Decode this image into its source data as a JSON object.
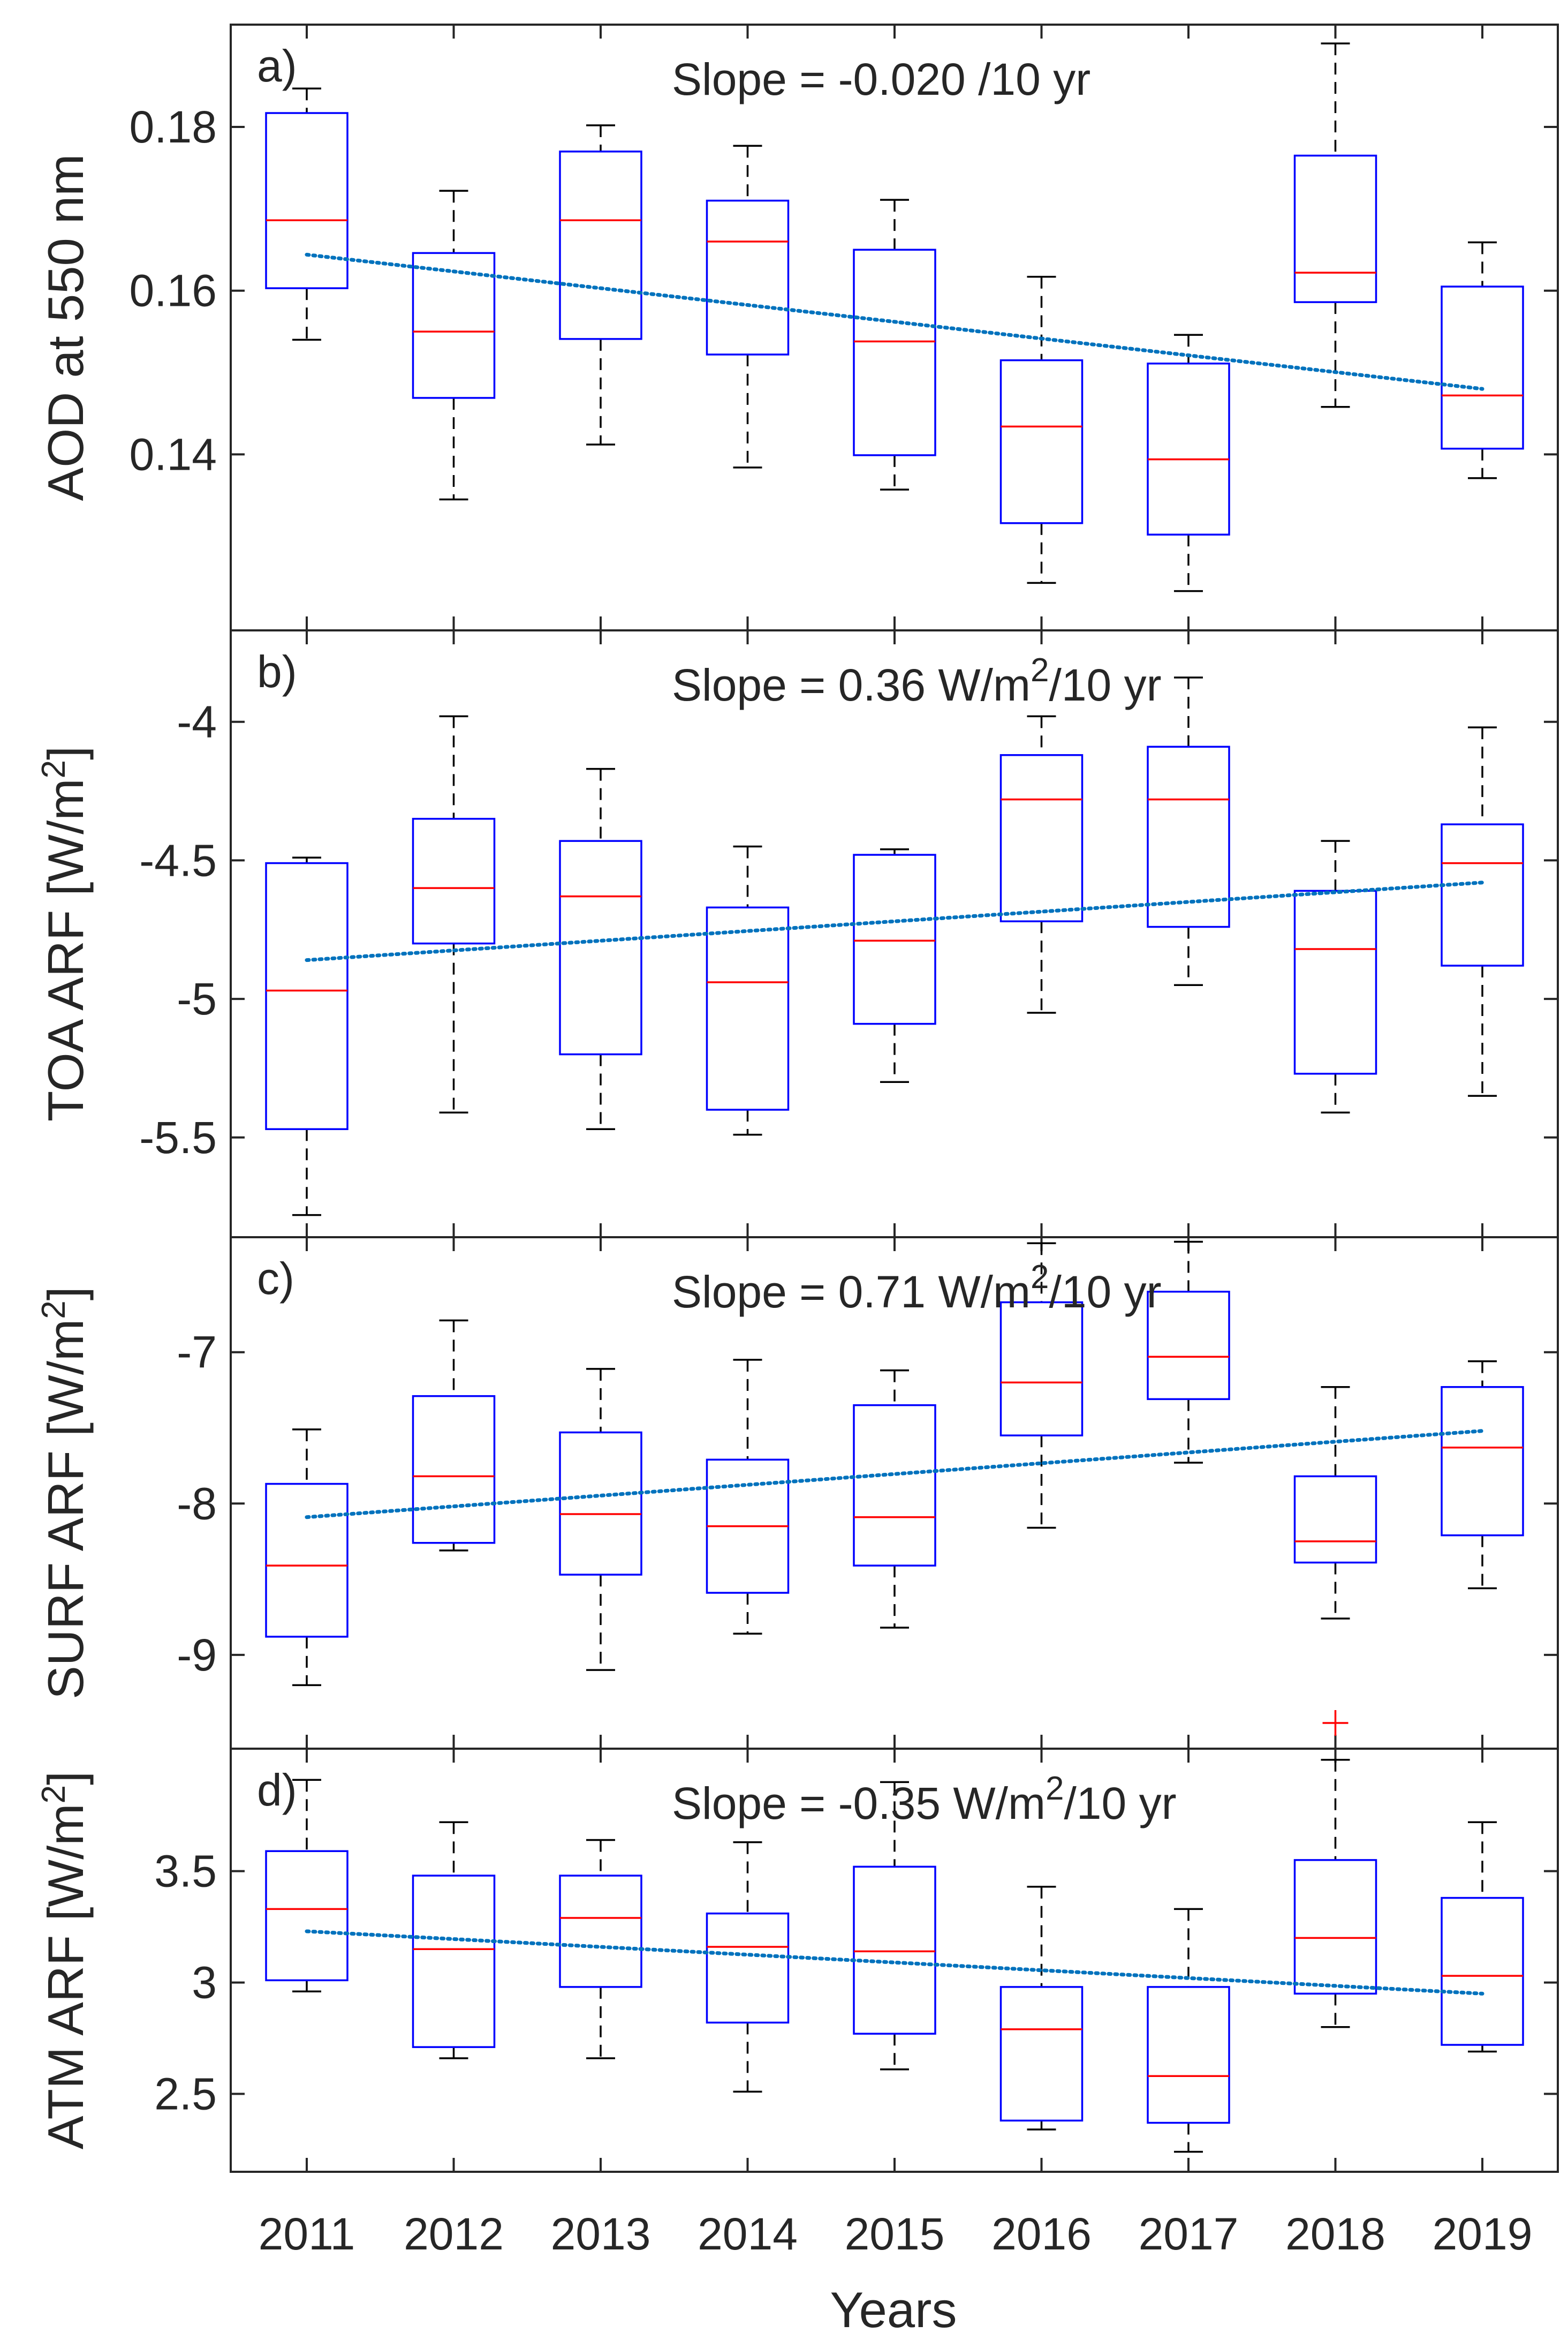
{
  "figure": {
    "xlabel": "Years",
    "categories": [
      "2011",
      "2012",
      "2013",
      "2014",
      "2015",
      "2016",
      "2017",
      "2018",
      "2019"
    ]
  },
  "colors": {
    "box": "#0000ff",
    "median": "#ff0000",
    "whisker": "#000000",
    "outlier": "#ff0000",
    "trend": "#0072bd",
    "axes": "#262626"
  },
  "chart_data": [
    {
      "type": "box",
      "panel": "a)",
      "ylabel": "AOD at 550 nm",
      "slope_text": "Slope = -0.020 /10 yr",
      "slope_superscript": "",
      "slope_suffix": "",
      "ylim": [
        0.1185,
        0.1925
      ],
      "yticks": [
        0.14,
        0.16,
        0.18
      ],
      "ytick_labels": [
        "0.14",
        "0.16",
        "0.18"
      ],
      "categories": [
        "2011",
        "2012",
        "2013",
        "2014",
        "2015",
        "2016",
        "2017",
        "2018",
        "2019"
      ],
      "boxes": [
        {
          "low": 0.154,
          "q1": 0.1603,
          "median": 0.1686,
          "q3": 0.1817,
          "high": 0.1847
        },
        {
          "low": 0.1345,
          "q1": 0.1469,
          "median": 0.155,
          "q3": 0.1646,
          "high": 0.1722
        },
        {
          "low": 0.1412,
          "q1": 0.1541,
          "median": 0.1686,
          "q3": 0.177,
          "high": 0.1802
        },
        {
          "low": 0.1384,
          "q1": 0.1522,
          "median": 0.166,
          "q3": 0.171,
          "high": 0.1777
        },
        {
          "low": 0.1357,
          "q1": 0.1399,
          "median": 0.1538,
          "q3": 0.165,
          "high": 0.1711
        },
        {
          "low": 0.1243,
          "q1": 0.1316,
          "median": 0.1434,
          "q3": 0.1515,
          "high": 0.1617
        },
        {
          "low": 0.1233,
          "q1": 0.1302,
          "median": 0.1394,
          "q3": 0.1511,
          "high": 0.1546
        },
        {
          "low": 0.1458,
          "q1": 0.1586,
          "median": 0.1622,
          "q3": 0.1765,
          "high": 0.1902
        },
        {
          "low": 0.1371,
          "q1": 0.1407,
          "median": 0.1472,
          "q3": 0.1605,
          "high": 0.1659
        }
      ],
      "outliers": [],
      "trend": {
        "start": 0.1644,
        "end": 0.148
      }
    },
    {
      "type": "box",
      "panel": "b)",
      "ylabel": "TOA ARF [W/m²]",
      "slope_text": "Slope = 0.36 W/m",
      "slope_superscript": "2",
      "slope_suffix": "/10 yr",
      "ylim": [
        -5.86,
        -3.67
      ],
      "yticks": [
        -5.5,
        -5,
        -4.5,
        -4
      ],
      "ytick_labels": [
        "-5.5",
        "-5",
        "-4.5",
        "-4"
      ],
      "categories": [
        "2011",
        "2012",
        "2013",
        "2014",
        "2015",
        "2016",
        "2017",
        "2018",
        "2019"
      ],
      "boxes": [
        {
          "low": -5.78,
          "q1": -5.47,
          "median": -4.97,
          "q3": -4.51,
          "high": -4.49
        },
        {
          "low": -5.41,
          "q1": -4.8,
          "median": -4.6,
          "q3": -4.35,
          "high": -3.98
        },
        {
          "low": -5.47,
          "q1": -5.2,
          "median": -4.63,
          "q3": -4.43,
          "high": -4.17
        },
        {
          "low": -5.49,
          "q1": -5.4,
          "median": -4.94,
          "q3": -4.67,
          "high": -4.45
        },
        {
          "low": -5.3,
          "q1": -5.09,
          "median": -4.79,
          "q3": -4.48,
          "high": -4.46
        },
        {
          "low": -5.05,
          "q1": -4.72,
          "median": -4.28,
          "q3": -4.12,
          "high": -3.98
        },
        {
          "low": -4.95,
          "q1": -4.74,
          "median": -4.28,
          "q3": -4.09,
          "high": -3.84
        },
        {
          "low": -5.41,
          "q1": -5.27,
          "median": -4.82,
          "q3": -4.61,
          "high": -4.43
        },
        {
          "low": -5.35,
          "q1": -4.88,
          "median": -4.51,
          "q3": -4.37,
          "high": -4.02
        }
      ],
      "outliers": [],
      "trend": {
        "start": -4.86,
        "end": -4.58
      }
    },
    {
      "type": "box",
      "panel": "c)",
      "ylabel": "SURF ARF [W/m²]",
      "slope_text": "Slope = 0.71 W/m",
      "slope_superscript": "2",
      "slope_suffix": "/10 yr",
      "ylim": [
        -9.62,
        -6.24
      ],
      "yticks": [
        -9,
        -8,
        -7
      ],
      "ytick_labels": [
        "-9",
        "-8",
        "-7"
      ],
      "categories": [
        "2011",
        "2012",
        "2013",
        "2014",
        "2015",
        "2016",
        "2017",
        "2018",
        "2019"
      ],
      "boxes": [
        {
          "low": -9.2,
          "q1": -8.88,
          "median": -8.41,
          "q3": -7.87,
          "high": -7.51
        },
        {
          "low": -8.31,
          "q1": -8.26,
          "median": -7.82,
          "q3": -7.29,
          "high": -6.79
        },
        {
          "low": -9.1,
          "q1": -8.47,
          "median": -8.07,
          "q3": -7.53,
          "high": -7.11
        },
        {
          "low": -8.86,
          "q1": -8.59,
          "median": -8.15,
          "q3": -7.71,
          "high": -7.05
        },
        {
          "low": -8.82,
          "q1": -8.41,
          "median": -8.09,
          "q3": -7.35,
          "high": -7.12
        },
        {
          "low": -8.16,
          "q1": -7.55,
          "median": -7.2,
          "q3": -6.67,
          "high": -6.28
        },
        {
          "low": -7.73,
          "q1": -7.31,
          "median": -7.03,
          "q3": -6.6,
          "high": -6.27
        },
        {
          "low": -8.76,
          "q1": -8.39,
          "median": -8.25,
          "q3": -7.82,
          "high": -7.23
        },
        {
          "low": -8.56,
          "q1": -8.21,
          "median": -7.63,
          "q3": -7.23,
          "high": -7.06
        }
      ],
      "outliers": [
        {
          "category": "2018",
          "value": -9.45
        }
      ],
      "trend": {
        "start": -8.09,
        "end": -7.52
      }
    },
    {
      "type": "box",
      "panel": "d)",
      "ylabel": "ATM ARF [W/m²]",
      "slope_text": "Slope = -0.35 W/m",
      "slope_superscript": "2",
      "slope_suffix": "/10 yr",
      "ylim": [
        2.15,
        4.05
      ],
      "yticks": [
        2.5,
        3,
        3.5
      ],
      "ytick_labels": [
        "2.5",
        "3",
        "3.5"
      ],
      "categories": [
        "2011",
        "2012",
        "2013",
        "2014",
        "2015",
        "2016",
        "2017",
        "2018",
        "2019"
      ],
      "boxes": [
        {
          "low": 2.96,
          "q1": 3.01,
          "median": 3.33,
          "q3": 3.59,
          "high": 3.91
        },
        {
          "low": 2.66,
          "q1": 2.71,
          "median": 3.15,
          "q3": 3.48,
          "high": 3.72
        },
        {
          "low": 2.66,
          "q1": 2.98,
          "median": 3.29,
          "q3": 3.48,
          "high": 3.64
        },
        {
          "low": 2.51,
          "q1": 2.82,
          "median": 3.16,
          "q3": 3.31,
          "high": 3.63
        },
        {
          "low": 2.61,
          "q1": 2.77,
          "median": 3.14,
          "q3": 3.52,
          "high": 3.9
        },
        {
          "low": 2.34,
          "q1": 2.38,
          "median": 2.79,
          "q3": 2.98,
          "high": 3.43
        },
        {
          "low": 2.24,
          "q1": 2.37,
          "median": 2.58,
          "q3": 2.98,
          "high": 3.33
        },
        {
          "low": 2.8,
          "q1": 2.95,
          "median": 3.2,
          "q3": 3.55,
          "high": 4.0
        },
        {
          "low": 2.69,
          "q1": 2.72,
          "median": 3.03,
          "q3": 3.38,
          "high": 3.72
        }
      ],
      "outliers": [],
      "trend": {
        "start": 3.23,
        "end": 2.95
      }
    }
  ]
}
